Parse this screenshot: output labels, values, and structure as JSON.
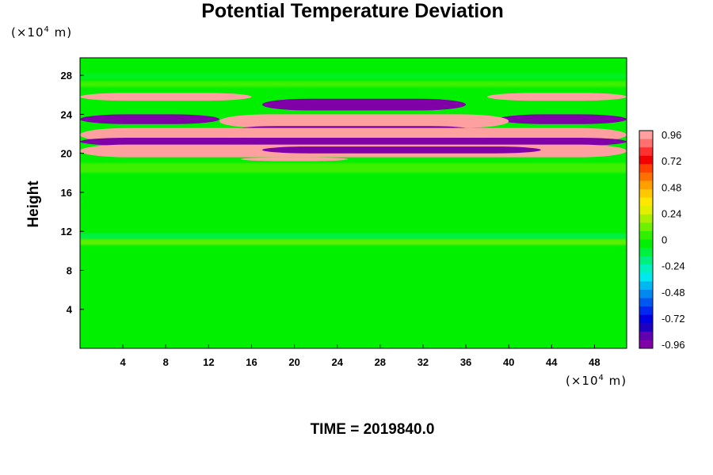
{
  "chart_data": {
    "type": "heatmap",
    "title": "Potential Temperature Deviation",
    "ylabel": "Height",
    "xlabel": "",
    "y_unit": {
      "prefix": "(×10",
      "exp": "4",
      "suffix": " m)"
    },
    "x_unit": {
      "prefix": "(×10",
      "exp": "4",
      "suffix": " m)"
    },
    "time_label": "TIME = 2019840.0",
    "x_ticks": [
      4,
      8,
      12,
      16,
      20,
      24,
      28,
      32,
      36,
      40,
      44,
      48
    ],
    "y_ticks": [
      4,
      8,
      12,
      16,
      20,
      24,
      28
    ],
    "xlim": [
      0,
      51
    ],
    "ylim": [
      0,
      29.8
    ],
    "colorbar": {
      "ticks": [
        "0.96",
        "0.72",
        "0.48",
        "0.24",
        "0",
        "-0.24",
        "-0.48",
        "-0.72",
        "-0.96"
      ],
      "range": [
        -0.96,
        0.96
      ],
      "colors_high_to_low": [
        "#ffa0a0",
        "#ff7070",
        "#ff3030",
        "#f00000",
        "#ff4000",
        "#ff7000",
        "#ffa000",
        "#ffc800",
        "#ffe800",
        "#e0f000",
        "#a8f000",
        "#70f000",
        "#30f000",
        "#00f000",
        "#00f040",
        "#00f080",
        "#00f0c0",
        "#00e8f0",
        "#00b8f0",
        "#0088f0",
        "#0058f0",
        "#0028f0",
        "#0000e0",
        "#2000c0",
        "#6000b0",
        "#8000a8"
      ]
    },
    "field_description": "deviation field approx. 0 (green) across most of domain; strong alternating positive/negative layers between heights 19 and 26; weak perturbations near height 11",
    "bands": [
      {
        "y": [
          25.4,
          26.2
        ],
        "value": 0.96,
        "x": [
          0,
          16
        ]
      },
      {
        "y": [
          25.4,
          26.2
        ],
        "value": 0.96,
        "x": [
          38,
          51
        ]
      },
      {
        "y": [
          24.4,
          25.6
        ],
        "value": -0.96,
        "x": [
          17,
          36
        ]
      },
      {
        "y": [
          23.0,
          24.0
        ],
        "value": -0.96,
        "x": [
          0,
          13
        ]
      },
      {
        "y": [
          23.0,
          24.0
        ],
        "value": -0.96,
        "x": [
          39,
          51
        ]
      },
      {
        "y": [
          22.6,
          24.0
        ],
        "value": 0.96,
        "x": [
          13,
          40
        ]
      },
      {
        "y": [
          21.8,
          22.8
        ],
        "value": -0.96,
        "x": [
          14,
          37
        ]
      },
      {
        "y": [
          21.2,
          22.6
        ],
        "value": 0.96,
        "x": [
          0,
          51
        ]
      },
      {
        "y": [
          20.8,
          21.6
        ],
        "value": -0.96,
        "x": [
          0,
          51
        ]
      },
      {
        "y": [
          19.6,
          20.9
        ],
        "value": 0.96,
        "x": [
          0,
          51
        ]
      },
      {
        "y": [
          20.0,
          20.7
        ],
        "value": -0.96,
        "x": [
          17,
          43
        ]
      },
      {
        "y": [
          19.2,
          19.6
        ],
        "value": 0.96,
        "x": [
          15,
          25
        ]
      }
    ]
  }
}
